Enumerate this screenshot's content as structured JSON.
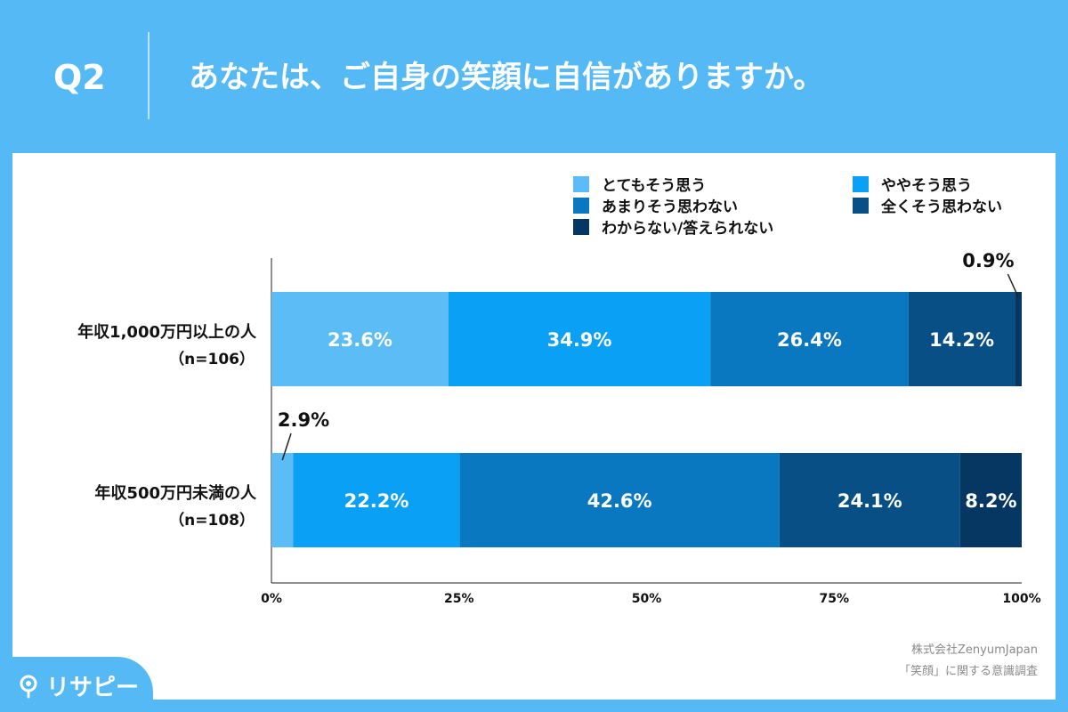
{
  "header": {
    "question_number": "Q2",
    "question_text": "あなたは、ご自身の笑顔に自信がありますか。"
  },
  "footer": {
    "source_company": "株式会社ZenyumJapan",
    "source_survey": "「笑顔」に関する意識調査",
    "logo_text": "リサピー",
    "logo_icon": "pin-icon"
  },
  "chart_data": {
    "type": "bar",
    "orientation": "horizontal",
    "stacked": true,
    "categories": [
      {
        "label": "年収1,000万円以上の人",
        "n_label": "（n=106）"
      },
      {
        "label": "年収500万円未満の人",
        "n_label": "（n=108）"
      }
    ],
    "series": [
      {
        "name": "とてもそう思う",
        "color": "#5bbcf6",
        "values": [
          23.6,
          2.9
        ],
        "labels": [
          "23.6%",
          "2.9%"
        ]
      },
      {
        "name": "ややそう思う",
        "color": "#0aa0f5",
        "values": [
          34.9,
          22.2
        ],
        "labels": [
          "34.9%",
          "22.2%"
        ]
      },
      {
        "name": "あまりそう思わない",
        "color": "#0a78c0",
        "values": [
          26.4,
          42.6
        ],
        "labels": [
          "26.4%",
          "42.6%"
        ]
      },
      {
        "name": "全くそう思わない",
        "color": "#084f86",
        "values": [
          14.2,
          24.1
        ],
        "labels": [
          "14.2%",
          "24.1%"
        ]
      },
      {
        "name": "わからない/答えられない",
        "color": "#063662",
        "values": [
          0.9,
          8.2
        ],
        "labels": [
          "0.9%",
          "8.2%"
        ]
      }
    ],
    "xlim": [
      0,
      100
    ],
    "x_ticks": [
      "0%",
      "25%",
      "50%",
      "75%",
      "100%"
    ],
    "legend_position": "top-right",
    "grid": false
  }
}
